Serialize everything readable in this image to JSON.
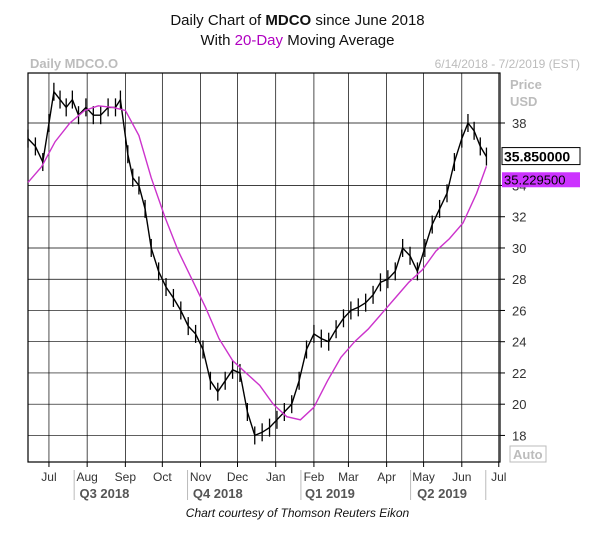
{
  "header": {
    "line1_prefix": "Daily Chart of ",
    "line1_ticker": "MDCO",
    "line1_suffix": " since June 2018",
    "line2_prefix": "With ",
    "line2_highlight": "20-Day",
    "line2_suffix": " Moving Average"
  },
  "watermark_left": "Daily MDCO.O",
  "watermark_right": "6/14/2018 - 7/2/2019 (EST)",
  "caption": "Chart courtesy of Thomson Reuters Eikon",
  "colors": {
    "price": "#000000",
    "ma": "#cc33cc",
    "grid": "#000000",
    "label_ma_bg": "#cc33ff"
  },
  "chart_data": {
    "type": "line",
    "price_axis_label": [
      "Price",
      "USD"
    ],
    "y_ticks": [
      18,
      20,
      22,
      24,
      26,
      28,
      30,
      32,
      34,
      38
    ],
    "ylim": [
      16.3,
      41.2
    ],
    "xlim": [
      "2018-06-14",
      "2019-07-02"
    ],
    "month_ticks": [
      {
        "label": "Jul",
        "date": "2018-07-01"
      },
      {
        "label": "Aug",
        "date": "2018-08-01"
      },
      {
        "label": "Sep",
        "date": "2018-09-01"
      },
      {
        "label": "Oct",
        "date": "2018-10-01"
      },
      {
        "label": "Nov",
        "date": "2018-11-01"
      },
      {
        "label": "Dec",
        "date": "2018-12-01"
      },
      {
        "label": "Jan",
        "date": "2019-01-01"
      },
      {
        "label": "Feb",
        "date": "2019-02-01"
      },
      {
        "label": "Mar",
        "date": "2019-03-01"
      },
      {
        "label": "Apr",
        "date": "2019-04-01"
      },
      {
        "label": "May",
        "date": "2019-05-01"
      },
      {
        "label": "Jun",
        "date": "2019-06-01"
      },
      {
        "label": "Jul",
        "date": "2019-07-01"
      }
    ],
    "quarter_labels": [
      {
        "label": "Q3 2018",
        "date": "2018-08-15"
      },
      {
        "label": "Q4 2018",
        "date": "2018-11-15"
      },
      {
        "label": "Q1 2019",
        "date": "2019-02-14"
      },
      {
        "label": "Q2 2019",
        "date": "2019-05-16"
      }
    ],
    "auto_label": "Auto",
    "last_price_label": "35.850000",
    "last_ma_label": "35.229500",
    "series": [
      {
        "name": "Price",
        "dates": [
          "2018-06-14",
          "2018-06-20",
          "2018-06-26",
          "2018-07-01",
          "2018-07-05",
          "2018-07-10",
          "2018-07-15",
          "2018-07-20",
          "2018-07-25",
          "2018-07-31",
          "2018-08-06",
          "2018-08-12",
          "2018-08-18",
          "2018-08-24",
          "2018-08-28",
          "2018-09-03",
          "2018-09-07",
          "2018-09-12",
          "2018-09-17",
          "2018-09-22",
          "2018-09-28",
          "2018-10-04",
          "2018-10-10",
          "2018-10-16",
          "2018-10-22",
          "2018-10-28",
          "2018-11-03",
          "2018-11-09",
          "2018-11-15",
          "2018-11-21",
          "2018-11-27",
          "2018-12-03",
          "2018-12-09",
          "2018-12-15",
          "2018-12-21",
          "2018-12-27",
          "2019-01-02",
          "2019-01-08",
          "2019-01-14",
          "2019-01-20",
          "2019-01-26",
          "2019-02-01",
          "2019-02-07",
          "2019-02-13",
          "2019-02-19",
          "2019-02-25",
          "2019-03-03",
          "2019-03-09",
          "2019-03-15",
          "2019-03-21",
          "2019-03-27",
          "2019-04-02",
          "2019-04-08",
          "2019-04-14",
          "2019-04-20",
          "2019-04-26",
          "2019-05-02",
          "2019-05-08",
          "2019-05-14",
          "2019-05-20",
          "2019-05-26",
          "2019-06-01",
          "2019-06-06",
          "2019-06-11",
          "2019-06-16",
          "2019-06-21"
        ],
        "values": [
          37.0,
          36.5,
          35.5,
          38.0,
          40.0,
          39.5,
          39.0,
          39.5,
          38.5,
          39.0,
          38.5,
          38.5,
          39.0,
          39.0,
          39.5,
          36.0,
          34.5,
          34.0,
          32.5,
          30.0,
          28.5,
          27.5,
          26.8,
          26.0,
          25.0,
          24.5,
          23.5,
          21.5,
          20.8,
          21.5,
          22.2,
          22.0,
          19.5,
          18.0,
          18.2,
          18.5,
          19.0,
          19.5,
          20.0,
          21.5,
          23.5,
          24.5,
          24.2,
          24.0,
          24.8,
          25.5,
          26.0,
          26.2,
          26.5,
          27.0,
          27.8,
          28.0,
          28.5,
          30.0,
          29.5,
          28.5,
          30.0,
          31.5,
          32.5,
          33.5,
          35.5,
          37.0,
          38.0,
          37.5,
          36.5,
          35.85
        ]
      },
      {
        "name": "20-Day Moving Average",
        "dates": [
          "2018-06-14",
          "2018-06-25",
          "2018-07-06",
          "2018-07-18",
          "2018-07-30",
          "2018-08-10",
          "2018-08-22",
          "2018-09-01",
          "2018-09-12",
          "2018-09-22",
          "2018-10-03",
          "2018-10-14",
          "2018-10-25",
          "2018-11-05",
          "2018-11-16",
          "2018-11-27",
          "2018-12-08",
          "2018-12-19",
          "2018-12-30",
          "2019-01-10",
          "2019-01-21",
          "2019-02-01",
          "2019-02-12",
          "2019-02-23",
          "2019-03-06",
          "2019-03-17",
          "2019-03-28",
          "2019-04-08",
          "2019-04-19",
          "2019-04-30",
          "2019-05-11",
          "2019-05-22",
          "2019-06-02",
          "2019-06-13",
          "2019-06-21"
        ],
        "values": [
          34.2,
          35.2,
          36.8,
          38.0,
          38.8,
          39.1,
          39.0,
          38.8,
          37.2,
          34.5,
          32.0,
          29.8,
          28.0,
          26.2,
          24.2,
          22.8,
          22.0,
          21.2,
          20.0,
          19.2,
          19.0,
          19.8,
          21.5,
          23.0,
          24.0,
          24.8,
          25.8,
          26.8,
          27.8,
          28.6,
          29.8,
          30.6,
          31.6,
          33.5,
          35.23
        ]
      }
    ]
  }
}
